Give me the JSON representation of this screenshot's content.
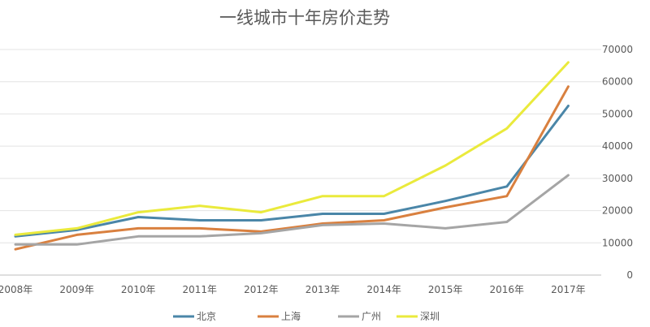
{
  "chart_data": {
    "type": "line",
    "title": "一线城市十年房价走势",
    "categories": [
      "2008年",
      "2009年",
      "2010年",
      "2011年",
      "2012年",
      "2013年",
      "2014年",
      "2015年",
      "2016年",
      "2017年"
    ],
    "series": [
      {
        "name": "北京",
        "color": "#4a86a8",
        "values": [
          12000,
          14000,
          18000,
          17000,
          17000,
          19000,
          19000,
          23000,
          27500,
          52500
        ]
      },
      {
        "name": "上海",
        "color": "#d9803f",
        "values": [
          8000,
          12500,
          14500,
          14500,
          13500,
          16000,
          17000,
          21000,
          24500,
          58500
        ]
      },
      {
        "name": "广州",
        "color": "#a5a5a5",
        "values": [
          9500,
          9500,
          12000,
          12000,
          13000,
          15500,
          16000,
          14500,
          16500,
          31000
        ]
      },
      {
        "name": "深圳",
        "color": "#eaea3c",
        "values": [
          12500,
          14500,
          19500,
          21500,
          19500,
          24500,
          24500,
          34000,
          45500,
          66000
        ]
      }
    ],
    "y_ticks": [
      "0",
      "10000",
      "20000",
      "30000",
      "40000",
      "50000",
      "60000",
      "70000"
    ],
    "ylim": [
      0,
      70000
    ],
    "y_axis_side": "right",
    "grid": true,
    "legend": "bottom"
  }
}
